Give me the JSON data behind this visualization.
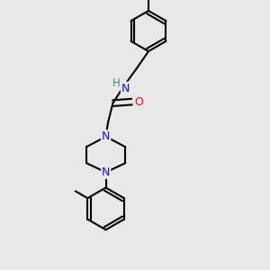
{
  "background_color": "#e8e8e8",
  "bond_color": "#000000",
  "bond_width": 1.5,
  "atom_colors": {
    "C": "#000000",
    "N": "#1010ee",
    "O": "#ff0000",
    "Cl": "#22bb00",
    "H": "#338888"
  },
  "figsize": [
    3.0,
    3.0
  ],
  "dpi": 100,
  "xlim": [
    0,
    10
  ],
  "ylim": [
    0,
    10
  ]
}
